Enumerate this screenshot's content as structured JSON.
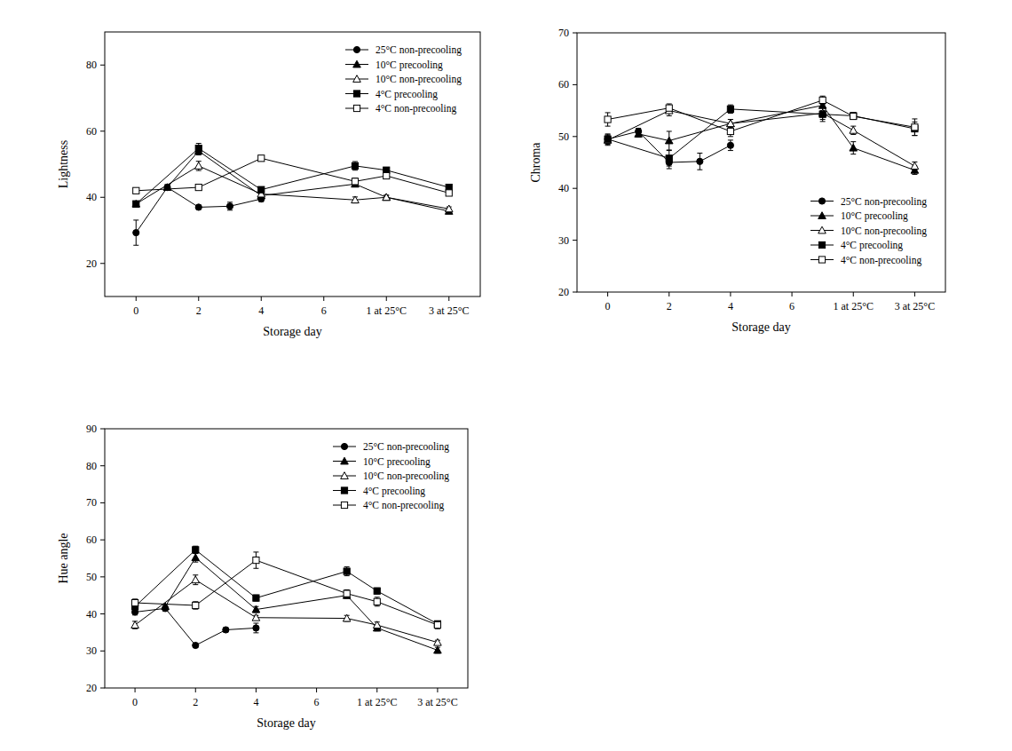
{
  "chart_data": [
    {
      "type": "line",
      "x_label": "Storage day",
      "y_label": "Lightness",
      "legend": "upper right",
      "xlim": [
        -1,
        11
      ],
      "xticks": [
        0,
        2,
        4,
        6,
        {
          "value": 8,
          "label": "1 at 25°C"
        },
        {
          "value": 10,
          "label": "3 at 25°C"
        }
      ],
      "ylim": [
        10,
        90
      ],
      "yticks": [
        20,
        40,
        60,
        80
      ],
      "series": [
        {
          "name": "25°C non-precooling",
          "color": "#000000",
          "marker": "circle",
          "x": [
            0,
            1,
            2,
            3,
            4
          ],
          "values": [
            29.3,
            43,
            37,
            37.3,
            39.5
          ],
          "errors": [
            3.8,
            0.8,
            0.6,
            1.2,
            0.8
          ]
        },
        {
          "name": "10°C precooling",
          "color": "#000000",
          "marker": "triangle",
          "x": [
            1,
            2,
            4,
            7,
            8,
            10
          ],
          "values": [
            43,
            54,
            40.5,
            44,
            40,
            35.8
          ],
          "errors": [
            0.8,
            1.2,
            0.8,
            0.8,
            0.6,
            0.6
          ]
        },
        {
          "name": "10°C non-precooling",
          "color": "#000000",
          "marker": "triangle-open",
          "x": [
            0,
            2,
            4,
            7,
            8,
            10
          ],
          "values": [
            38,
            49.5,
            41,
            39.2,
            40,
            36.5
          ],
          "errors": [
            0.8,
            1.4,
            0.8,
            0.9,
            0.6,
            0.6
          ]
        },
        {
          "name": "4°C precooling",
          "color": "#000000",
          "marker": "square",
          "x": [
            0,
            2,
            4,
            7,
            8,
            10
          ],
          "values": [
            38,
            54.8,
            42.3,
            49.5,
            48.2,
            43
          ],
          "errors": [
            0.6,
            1.5,
            0.8,
            1.3,
            0.8,
            0.9
          ]
        },
        {
          "name": "4°C non-precooling",
          "color": "#000000",
          "marker": "square-open",
          "x": [
            0,
            2,
            4,
            7,
            8,
            10
          ],
          "values": [
            42,
            43,
            51.8,
            44.8,
            46.5,
            41.3
          ],
          "errors": [
            0.6,
            0.6,
            0.8,
            1.0,
            0.8,
            0.8
          ]
        }
      ]
    },
    {
      "type": "line",
      "x_label": "Storage day",
      "y_label": "Chroma",
      "legend": "lower right",
      "xlim": [
        -1,
        11
      ],
      "xticks": [
        0,
        2,
        4,
        6,
        {
          "value": 8,
          "label": "1 at 25°C"
        },
        {
          "value": 10,
          "label": "3 at 25°C"
        }
      ],
      "ylim": [
        20,
        70
      ],
      "yticks": [
        20,
        30,
        40,
        50,
        60,
        70
      ],
      "series": [
        {
          "name": "25°C non-precooling",
          "color": "#000000",
          "marker": "circle",
          "x": [
            0,
            1,
            2,
            3,
            4
          ],
          "values": [
            49.5,
            51,
            45,
            45.2,
            48.3
          ],
          "errors": [
            0.8,
            0.6,
            1.2,
            1.6,
            1.0
          ]
        },
        {
          "name": "10°C precooling",
          "color": "#000000",
          "marker": "triangle",
          "x": [
            1,
            2,
            4,
            7,
            8,
            10
          ],
          "values": [
            50.5,
            49.2,
            52.5,
            56,
            47.8,
            43.5
          ],
          "errors": [
            0.6,
            1.8,
            0.8,
            1.0,
            1.2,
            0.8
          ]
        },
        {
          "name": "10°C non-precooling",
          "color": "#000000",
          "marker": "triangle-open",
          "x": [
            0,
            2,
            4,
            7,
            8,
            10
          ],
          "values": [
            49.3,
            55,
            52.5,
            54.5,
            51.2,
            44.3
          ],
          "errors": [
            1.0,
            1.0,
            0.8,
            1.2,
            0.8,
            0.8
          ]
        },
        {
          "name": "4°C precooling",
          "color": "#000000",
          "marker": "square",
          "x": [
            0,
            2,
            4,
            7,
            8,
            10
          ],
          "values": [
            49.5,
            45.8,
            55.3,
            54.3,
            54,
            51.5
          ],
          "errors": [
            1.0,
            1.5,
            0.8,
            1.4,
            0.6,
            1.3
          ]
        },
        {
          "name": "4°C non-precooling",
          "color": "#000000",
          "marker": "square-open",
          "x": [
            0,
            2,
            4,
            7,
            8,
            10
          ],
          "values": [
            53.3,
            55.5,
            51,
            57,
            53.9,
            51.8
          ],
          "errors": [
            1.3,
            0.8,
            1.0,
            0.8,
            0.6,
            1.6
          ]
        }
      ]
    },
    {
      "type": "line",
      "x_label": "Storage day",
      "y_label": "Hue angle",
      "legend": "upper right",
      "xlim": [
        -1,
        11
      ],
      "xticks": [
        0,
        2,
        4,
        6,
        {
          "value": 8,
          "label": "1 at 25°C"
        },
        {
          "value": 10,
          "label": "3 at 25°C"
        }
      ],
      "ylim": [
        20,
        90
      ],
      "yticks": [
        20,
        30,
        40,
        50,
        60,
        70,
        80,
        90
      ],
      "series": [
        {
          "name": "25°C non-precooling",
          "color": "#000000",
          "marker": "circle",
          "x": [
            0,
            1,
            2,
            3,
            4
          ],
          "values": [
            40.5,
            41.5,
            31.5,
            35.7,
            36.2
          ],
          "errors": [
            0.8,
            0.8,
            0.6,
            0.6,
            1.3
          ]
        },
        {
          "name": "10°C precooling",
          "color": "#000000",
          "marker": "triangle",
          "x": [
            1,
            2,
            4,
            7,
            8,
            10
          ],
          "values": [
            42,
            55.2,
            41.2,
            45,
            36.2,
            30.2
          ],
          "errors": [
            0.6,
            1.2,
            0.8,
            0.8,
            0.8,
            0.8
          ]
        },
        {
          "name": "10°C non-precooling",
          "color": "#000000",
          "marker": "triangle-open",
          "x": [
            0,
            2,
            4,
            7,
            8,
            10
          ],
          "values": [
            37,
            49.2,
            39,
            38.8,
            37,
            32.3
          ],
          "errors": [
            1.0,
            1.3,
            0.6,
            0.8,
            0.8,
            0.6
          ]
        },
        {
          "name": "4°C precooling",
          "color": "#000000",
          "marker": "square",
          "x": [
            0,
            2,
            4,
            7,
            8,
            10
          ],
          "values": [
            42,
            57.3,
            44.3,
            51.5,
            46.2,
            37.3
          ],
          "errors": [
            0.8,
            1.0,
            0.8,
            1.2,
            0.8,
            0.8
          ]
        },
        {
          "name": "4°C non-precooling",
          "color": "#000000",
          "marker": "square-open",
          "x": [
            0,
            2,
            4,
            7,
            8,
            10
          ],
          "values": [
            43,
            42.3,
            54.5,
            45.5,
            43.3,
            37
          ],
          "errors": [
            1.0,
            1.0,
            2.2,
            1.0,
            1.2,
            1.0
          ]
        }
      ]
    }
  ]
}
